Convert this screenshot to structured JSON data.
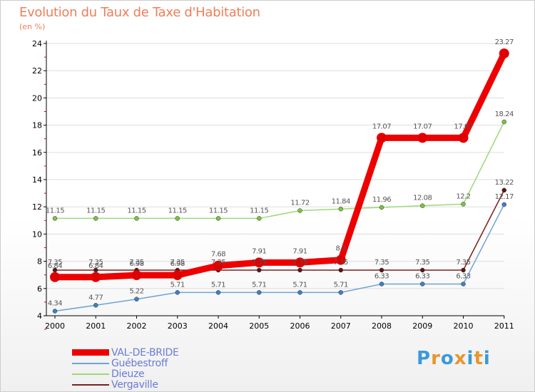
{
  "colors": {
    "title": "#ee7e59",
    "axis": "#000000",
    "grid": "#dddddd",
    "label": "#555555",
    "legend_text": "#6a7bd6"
  },
  "logo": {
    "text": "Proxiti",
    "letters": [
      "P",
      "r",
      "o",
      "x",
      "i",
      "t",
      "i"
    ],
    "colors": [
      "#3a9ad9",
      "#e8962e",
      "#3a9ad9",
      "#e8962e",
      "#3a9ad9",
      "#e8962e",
      "#3a9ad9"
    ]
  },
  "chart_data": {
    "type": "line",
    "title": "Evolution du Taux de Taxe d'Habitation",
    "ylabel": "(en %)",
    "xlabel": "",
    "ylim": [
      4,
      24
    ],
    "yticks": [
      4,
      6,
      8,
      10,
      12,
      14,
      16,
      18,
      20,
      22,
      24
    ],
    "categories": [
      "2000",
      "2001",
      "2002",
      "2003",
      "2004",
      "2005",
      "2006",
      "2007",
      "2008",
      "2009",
      "2010",
      "2011"
    ],
    "series": [
      {
        "name": "Vergaville",
        "color": "#7a2020",
        "marker_color": "#5a1414",
        "width": 1.5,
        "values": [
          7.35,
          7.35,
          7.35,
          7.35,
          7.35,
          7.35,
          7.35,
          7.35,
          7.35,
          7.35,
          7.35,
          13.22
        ],
        "labels": [
          "7.35",
          "7.35",
          "7.35",
          "7.35",
          "7.35",
          "7.35",
          "7.35",
          "7.35",
          "7.35",
          "7.35",
          "7.35",
          "13.22"
        ],
        "label_pos": [
          "above",
          "above",
          "above",
          "above",
          "above",
          "above",
          "above",
          "above",
          "above",
          "above",
          "above",
          "above"
        ]
      },
      {
        "name": "Dieuze",
        "color": "#9ed87a",
        "marker_color": "#7cc242",
        "width": 1.5,
        "values": [
          11.15,
          11.15,
          11.15,
          11.15,
          11.15,
          11.15,
          11.72,
          11.84,
          11.96,
          12.08,
          12.2,
          18.24
        ],
        "labels": [
          "11.15",
          "11.15",
          "11.15",
          "11.15",
          "11.15",
          "11.15",
          "11.72",
          "11.84",
          "11.96",
          "12.08",
          "12.2",
          "18.24"
        ],
        "label_pos": [
          "above",
          "above",
          "above",
          "above",
          "above",
          "above",
          "above",
          "above",
          "above",
          "above",
          "above",
          "above"
        ]
      },
      {
        "name": "Guébestroff",
        "color": "#6fa3d4",
        "marker_color": "#3d80c6",
        "width": 1.5,
        "values": [
          4.34,
          4.77,
          5.22,
          5.71,
          5.71,
          5.71,
          5.71,
          5.71,
          6.33,
          6.33,
          6.33,
          12.17
        ],
        "labels": [
          "4.34",
          "4.77",
          "5.22",
          "5.71",
          "5.71",
          "5.71",
          "5.71",
          "5.71",
          "6.33",
          "6.33",
          "6.33",
          "12.17"
        ],
        "label_pos": [
          "above",
          "above",
          "above",
          "above",
          "above",
          "above",
          "above",
          "above",
          "above",
          "above",
          "above",
          "above"
        ]
      },
      {
        "name": "VAL-DE-BRIDE",
        "color": "#ee0000",
        "marker_color": "#dd0000",
        "width": 9,
        "values": [
          6.84,
          6.84,
          6.98,
          6.98,
          7.68,
          7.91,
          7.91,
          8.1,
          17.07,
          17.07,
          17.07,
          23.27
        ],
        "labels": [
          "6.84",
          "6.84",
          "6.98",
          "6.98",
          "7.68",
          "7.91",
          "7.91",
          "8.1",
          "17.07",
          "17.07",
          "17.07",
          "23.27"
        ],
        "label_pos": [
          "above",
          "above",
          "above",
          "above",
          "above",
          "above",
          "above",
          "above",
          "above",
          "above",
          "above",
          "above"
        ]
      }
    ],
    "legend": [
      "VAL-DE-BRIDE",
      "Guébestroff",
      "Dieuze",
      "Vergaville"
    ],
    "legend_placement": "bottom-left"
  }
}
